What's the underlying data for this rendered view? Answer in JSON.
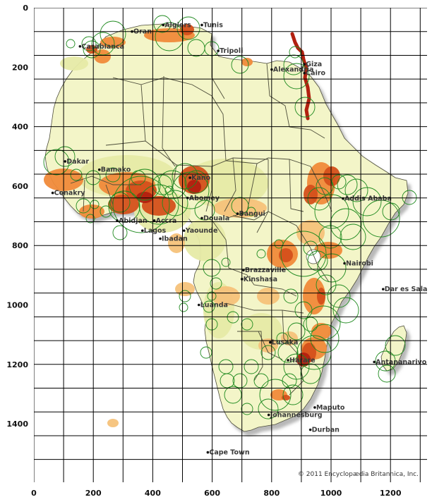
{
  "map": {
    "credit": "© 2011 Encyclopædia Britannica, Inc.",
    "colors": {
      "ocean": "#ffffff",
      "land_low": "#f3f5c8",
      "land_mid": "#e6eaa6",
      "dense_light": "#f6c27a",
      "dense_mid": "#f08a3a",
      "dense_high": "#d4501b",
      "dense_max": "#b22010",
      "border": "#4d4d3a",
      "grid": "#000000",
      "circle": "#1f8a1f",
      "label": "#3a3a3a"
    },
    "cities": [
      {
        "name": "Algiers",
        "x": 440,
        "y": 58
      },
      {
        "name": "Tunis",
        "x": 570,
        "y": 58
      },
      {
        "name": "Oran",
        "x": 335,
        "y": 80
      },
      {
        "name": "Casablanca",
        "x": 160,
        "y": 130
      },
      {
        "name": "Tripoli",
        "x": 625,
        "y": 145
      },
      {
        "name": "Giza",
        "x": 915,
        "y": 190
      },
      {
        "name": "Alexandria",
        "x": 805,
        "y": 208
      },
      {
        "name": "Cairo",
        "x": 915,
        "y": 220
      },
      {
        "name": "Dakar",
        "x": 110,
        "y": 517
      },
      {
        "name": "Bamako",
        "x": 225,
        "y": 545
      },
      {
        "name": "Kano",
        "x": 530,
        "y": 572
      },
      {
        "name": "Conakry",
        "x": 68,
        "y": 623
      },
      {
        "name": "Addis Ababa",
        "x": 1045,
        "y": 642
      },
      {
        "name": "Abomey",
        "x": 522,
        "y": 640
      },
      {
        "name": "Bangui",
        "x": 690,
        "y": 693
      },
      {
        "name": "Abidjan",
        "x": 285,
        "y": 716
      },
      {
        "name": "Accra",
        "x": 410,
        "y": 716
      },
      {
        "name": "Douala",
        "x": 570,
        "y": 708
      },
      {
        "name": "Lagos",
        "x": 370,
        "y": 750
      },
      {
        "name": "Yaounde",
        "x": 510,
        "y": 750
      },
      {
        "name": "Ibadan",
        "x": 430,
        "y": 777
      },
      {
        "name": "Nairobi",
        "x": 1050,
        "y": 860
      },
      {
        "name": "Brazzaville",
        "x": 710,
        "y": 883
      },
      {
        "name": "Kinshasa",
        "x": 705,
        "y": 913
      },
      {
        "name": "Dar es Salaam",
        "x": 1180,
        "y": 947
      },
      {
        "name": "Luanda",
        "x": 560,
        "y": 1000
      },
      {
        "name": "Lusaka",
        "x": 800,
        "y": 1126
      },
      {
        "name": "Harare",
        "x": 860,
        "y": 1186
      },
      {
        "name": "Antananarivo",
        "x": 1150,
        "y": 1192
      },
      {
        "name": "Maputo",
        "x": 950,
        "y": 1345
      },
      {
        "name": "Johannesburg",
        "x": 795,
        "y": 1370
      },
      {
        "name": "Durban",
        "x": 935,
        "y": 1420
      },
      {
        "name": "Cape Town",
        "x": 590,
        "y": 1496
      }
    ]
  },
  "chart_data": {
    "type": "map",
    "x_axis": {
      "ticks": [
        0,
        200,
        400,
        600,
        800,
        1000,
        1200
      ],
      "range": [
        0,
        1300
      ]
    },
    "y_axis": {
      "ticks": [
        0,
        200,
        400,
        600,
        800,
        1000,
        1200,
        1400
      ],
      "range": [
        0,
        1560
      ]
    },
    "grid": true
  }
}
